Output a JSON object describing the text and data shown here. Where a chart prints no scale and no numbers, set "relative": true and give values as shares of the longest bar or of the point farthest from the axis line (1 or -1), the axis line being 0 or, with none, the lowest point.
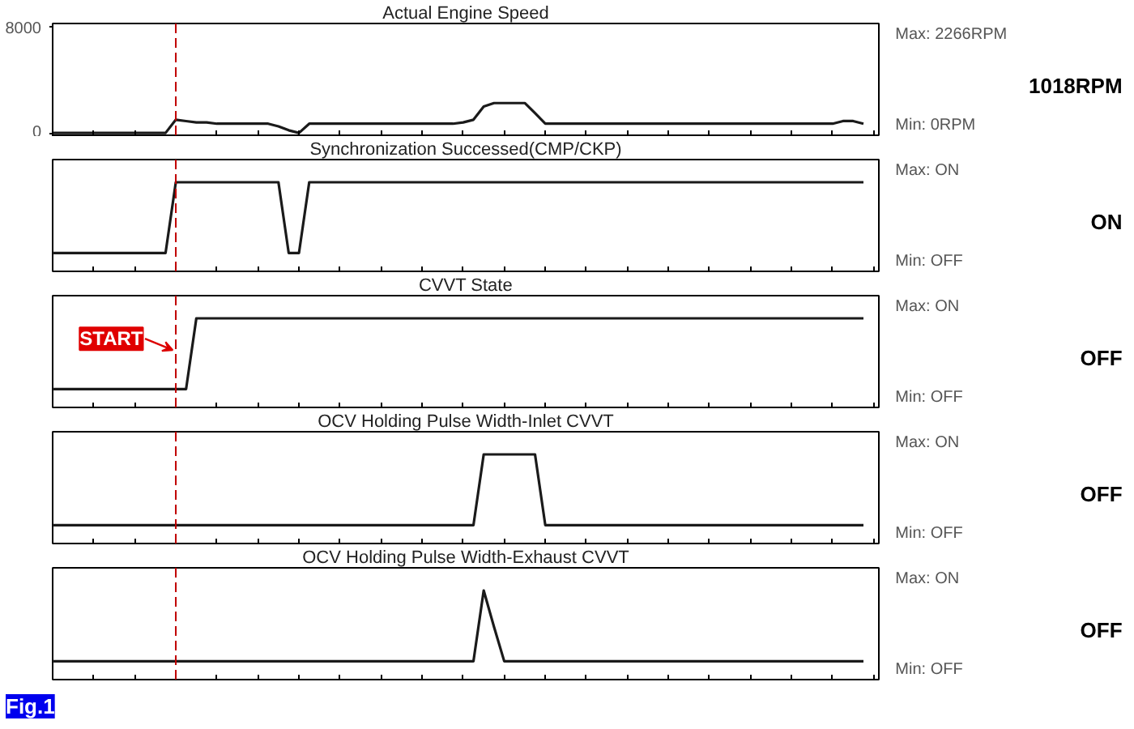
{
  "chart_data": [
    {
      "type": "line",
      "title": "Actual Engine Speed",
      "categories": [
        null,
        null,
        null,
        null,
        null,
        null,
        null,
        null,
        null,
        null,
        null,
        null,
        null,
        null,
        null,
        null,
        null,
        null,
        null,
        null,
        null,
        null,
        null,
        null,
        null,
        null,
        null,
        null,
        null,
        null,
        null,
        null,
        null,
        null,
        null,
        null,
        null,
        null,
        null,
        null,
        null,
        null,
        null,
        null,
        null,
        null,
        null,
        null,
        null,
        null,
        null,
        null,
        null,
        null,
        null,
        null,
        null,
        null,
        null,
        null,
        null,
        null,
        null,
        null,
        null,
        null,
        null,
        null,
        null,
        null,
        null,
        null,
        null,
        null,
        null,
        null,
        null,
        null,
        null,
        null
      ],
      "series": [
        {
          "color": "#1a1a1a",
          "values": [
            0,
            0,
            0,
            0,
            0,
            0,
            0,
            0,
            0,
            0,
            0,
            0,
            1000,
            900,
            800,
            800,
            700,
            700,
            700,
            700,
            700,
            700,
            500,
            200,
            0,
            700,
            700,
            700,
            700,
            700,
            700,
            700,
            700,
            700,
            700,
            700,
            700,
            700,
            700,
            700,
            800,
            1000,
            2000,
            2266,
            2266,
            2266,
            2266,
            1500,
            700,
            700,
            700,
            700,
            700,
            700,
            700,
            700,
            700,
            700,
            700,
            700,
            700,
            700,
            700,
            700,
            700,
            700,
            700,
            700,
            700,
            700,
            700,
            700,
            700,
            700,
            700,
            700,
            700,
            900,
            900,
            700
          ]
        }
      ],
      "ylim": [
        -300,
        8300
      ],
      "yticks": [
        0,
        8000
      ],
      "tick_labels": "y",
      "line_style": "solid",
      "annotations": [
        "1018RPM",
        "Max: 2266RPM",
        "Min: 0RPM"
      ]
    },
    {
      "type": "line",
      "title": "Synchronization Successed(CMP/CKP)",
      "relative": true,
      "categories": [
        null,
        null,
        null,
        null,
        null,
        null,
        null,
        null,
        null,
        null,
        null,
        null,
        null,
        null,
        null,
        null,
        null,
        null,
        null,
        null,
        null,
        null,
        null,
        null,
        null,
        null,
        null,
        null,
        null,
        null,
        null,
        null,
        null,
        null,
        null,
        null,
        null,
        null,
        null,
        null,
        null,
        null,
        null,
        null,
        null,
        null,
        null,
        null,
        null,
        null,
        null,
        null,
        null,
        null,
        null,
        null,
        null,
        null,
        null,
        null,
        null,
        null,
        null,
        null,
        null,
        null,
        null,
        null,
        null,
        null,
        null,
        null,
        null,
        null,
        null,
        null,
        null,
        null,
        null,
        null
      ],
      "series": [
        {
          "color": "#1a1a1a",
          "values": [
            0.22,
            0.22,
            0.22,
            0.22,
            0.22,
            0.22,
            0.22,
            0.22,
            0.22,
            0.22,
            0.22,
            0.22,
            1,
            1,
            1,
            1,
            1,
            1,
            1,
            1,
            1,
            1,
            1,
            0.22,
            0.22,
            1,
            1,
            1,
            1,
            1,
            1,
            1,
            1,
            1,
            1,
            1,
            1,
            1,
            1,
            1,
            1,
            1,
            1,
            1,
            1,
            1,
            1,
            1,
            1,
            1,
            1,
            1,
            1,
            1,
            1,
            1,
            1,
            1,
            1,
            1,
            1,
            1,
            1,
            1,
            1,
            1,
            1,
            1,
            1,
            1,
            1,
            1,
            1,
            1,
            1,
            1,
            1,
            1,
            1,
            1
          ]
        }
      ],
      "line_style": "solid",
      "annotations": [
        "ON",
        "Max: ON",
        "Min: OFF"
      ]
    },
    {
      "type": "line",
      "title": "CVVT State",
      "relative": true,
      "categories": [
        null,
        null,
        null,
        null,
        null,
        null,
        null,
        null,
        null,
        null,
        null,
        null,
        null,
        null,
        null,
        null,
        null,
        null,
        null,
        null,
        null,
        null,
        null,
        null,
        null,
        null,
        null,
        null,
        null,
        null,
        null,
        null,
        null,
        null,
        null,
        null,
        null,
        null,
        null,
        null,
        null,
        null,
        null,
        null,
        null,
        null,
        null,
        null,
        null,
        null,
        null,
        null,
        null,
        null,
        null,
        null,
        null,
        null,
        null,
        null,
        null,
        null,
        null,
        null,
        null,
        null,
        null,
        null,
        null,
        null,
        null,
        null,
        null,
        null,
        null,
        null,
        null,
        null,
        null,
        null
      ],
      "series": [
        {
          "color": "#1a1a1a",
          "values": [
            0.22,
            0.22,
            0.22,
            0.22,
            0.22,
            0.22,
            0.22,
            0.22,
            0.22,
            0.22,
            0.22,
            0.22,
            0.22,
            0.22,
            1,
            1,
            1,
            1,
            1,
            1,
            1,
            1,
            1,
            1,
            1,
            1,
            1,
            1,
            1,
            1,
            1,
            1,
            1,
            1,
            1,
            1,
            1,
            1,
            1,
            1,
            1,
            1,
            1,
            1,
            1,
            1,
            1,
            1,
            1,
            1,
            1,
            1,
            1,
            1,
            1,
            1,
            1,
            1,
            1,
            1,
            1,
            1,
            1,
            1,
            1,
            1,
            1,
            1,
            1,
            1,
            1,
            1,
            1,
            1,
            1,
            1,
            1,
            1,
            1,
            1
          ]
        }
      ],
      "line_style": "solid",
      "annotations": [
        "OFF",
        "Max: ON",
        "Min: OFF",
        "START"
      ]
    },
    {
      "type": "line",
      "title": "OCV Holding Pulse Width-Inlet CVVT",
      "relative": true,
      "categories": [
        null,
        null,
        null,
        null,
        null,
        null,
        null,
        null,
        null,
        null,
        null,
        null,
        null,
        null,
        null,
        null,
        null,
        null,
        null,
        null,
        null,
        null,
        null,
        null,
        null,
        null,
        null,
        null,
        null,
        null,
        null,
        null,
        null,
        null,
        null,
        null,
        null,
        null,
        null,
        null,
        null,
        null,
        null,
        null,
        null,
        null,
        null,
        null,
        null,
        null,
        null,
        null,
        null,
        null,
        null,
        null,
        null,
        null,
        null,
        null,
        null,
        null,
        null,
        null,
        null,
        null,
        null,
        null,
        null,
        null,
        null,
        null,
        null,
        null,
        null,
        null,
        null,
        null,
        null,
        null
      ],
      "series": [
        {
          "color": "#1a1a1a",
          "values": [
            0.22,
            0.22,
            0.22,
            0.22,
            0.22,
            0.22,
            0.22,
            0.22,
            0.22,
            0.22,
            0.22,
            0.22,
            0.22,
            0.22,
            0.22,
            0.22,
            0.22,
            0.22,
            0.22,
            0.22,
            0.22,
            0.22,
            0.22,
            0.22,
            0.22,
            0.22,
            0.22,
            0.22,
            0.22,
            0.22,
            0.22,
            0.22,
            0.22,
            0.22,
            0.22,
            0.22,
            0.22,
            0.22,
            0.22,
            0.22,
            0.22,
            0.22,
            1,
            1,
            1,
            1,
            1,
            1,
            0.22,
            0.22,
            0.22,
            0.22,
            0.22,
            0.22,
            0.22,
            0.22,
            0.22,
            0.22,
            0.22,
            0.22,
            0.22,
            0.22,
            0.22,
            0.22,
            0.22,
            0.22,
            0.22,
            0.22,
            0.22,
            0.22,
            0.22,
            0.22,
            0.22,
            0.22,
            0.22,
            0.22,
            0.22,
            0.22,
            0.22,
            0.22
          ]
        }
      ],
      "line_style": "solid",
      "annotations": [
        "OFF",
        "Max: ON",
        "Min: OFF"
      ]
    },
    {
      "type": "line",
      "title": "OCV Holding Pulse Width-Exhaust CVVT",
      "relative": true,
      "categories": [
        null,
        null,
        null,
        null,
        null,
        null,
        null,
        null,
        null,
        null,
        null,
        null,
        null,
        null,
        null,
        null,
        null,
        null,
        null,
        null,
        null,
        null,
        null,
        null,
        null,
        null,
        null,
        null,
        null,
        null,
        null,
        null,
        null,
        null,
        null,
        null,
        null,
        null,
        null,
        null,
        null,
        null,
        null,
        null,
        null,
        null,
        null,
        null,
        null,
        null,
        null,
        null,
        null,
        null,
        null,
        null,
        null,
        null,
        null,
        null,
        null,
        null,
        null,
        null,
        null,
        null,
        null,
        null,
        null,
        null,
        null,
        null,
        null,
        null,
        null,
        null,
        null,
        null,
        null,
        null
      ],
      "series": [
        {
          "color": "#1a1a1a",
          "values": [
            0.22,
            0.22,
            0.22,
            0.22,
            0.22,
            0.22,
            0.22,
            0.22,
            0.22,
            0.22,
            0.22,
            0.22,
            0.22,
            0.22,
            0.22,
            0.22,
            0.22,
            0.22,
            0.22,
            0.22,
            0.22,
            0.22,
            0.22,
            0.22,
            0.22,
            0.22,
            0.22,
            0.22,
            0.22,
            0.22,
            0.22,
            0.22,
            0.22,
            0.22,
            0.22,
            0.22,
            0.22,
            0.22,
            0.22,
            0.22,
            0.22,
            0.22,
            1,
            0.6,
            0.22,
            0.22,
            0.22,
            0.22,
            0.22,
            0.22,
            0.22,
            0.22,
            0.22,
            0.22,
            0.22,
            0.22,
            0.22,
            0.22,
            0.22,
            0.22,
            0.22,
            0.22,
            0.22,
            0.22,
            0.22,
            0.22,
            0.22,
            0.22,
            0.22,
            0.22,
            0.22,
            0.22,
            0.22,
            0.22,
            0.22,
            0.22,
            0.22,
            0.22,
            0.22,
            0.22
          ]
        }
      ],
      "line_style": "solid",
      "annotations": [
        "OFF",
        "Max: ON",
        "Min: OFF",
        "Fig.1"
      ]
    }
  ]
}
